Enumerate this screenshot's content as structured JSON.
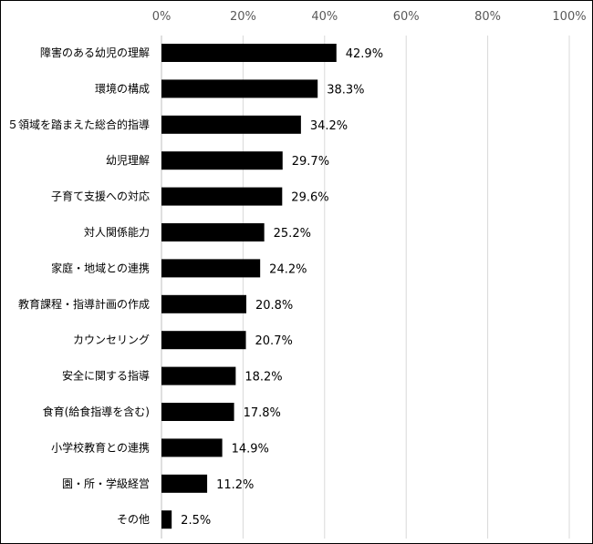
{
  "chart_data": {
    "type": "bar",
    "orientation": "horizontal",
    "categories": [
      "障害のある幼児の理解",
      "環境の構成",
      "５領域を踏まえた総合的指導",
      "幼児理解",
      "子育て支援への対応",
      "対人関係能力",
      "家庭・地域との連携",
      "教育課程・指導計画の作成",
      "カウンセリング",
      "安全に関する指導",
      "食育(給食指導を含む)",
      "小学校教育との連携",
      "園・所・学級経営",
      "その他"
    ],
    "values": [
      42.9,
      38.3,
      34.2,
      29.7,
      29.6,
      25.2,
      24.2,
      20.8,
      20.7,
      18.2,
      17.8,
      14.9,
      11.2,
      2.5
    ],
    "data_labels": [
      "42.9%",
      "38.3%",
      "34.2%",
      "29.7%",
      "29.6%",
      "25.2%",
      "24.2%",
      "20.8%",
      "20.7%",
      "18.2%",
      "17.8%",
      "14.9%",
      "11.2%",
      "2.5%"
    ],
    "xlim": [
      0,
      100
    ],
    "x_ticks": [
      0,
      20,
      40,
      60,
      80,
      100
    ],
    "x_tick_labels": [
      "0%",
      "20%",
      "40%",
      "60%",
      "80%",
      "100%"
    ],
    "x_axis_position": "top",
    "grid": true,
    "title": "",
    "xlabel": "",
    "ylabel": "",
    "bar_color": "#000000",
    "grid_color": "#d9d9d9"
  }
}
